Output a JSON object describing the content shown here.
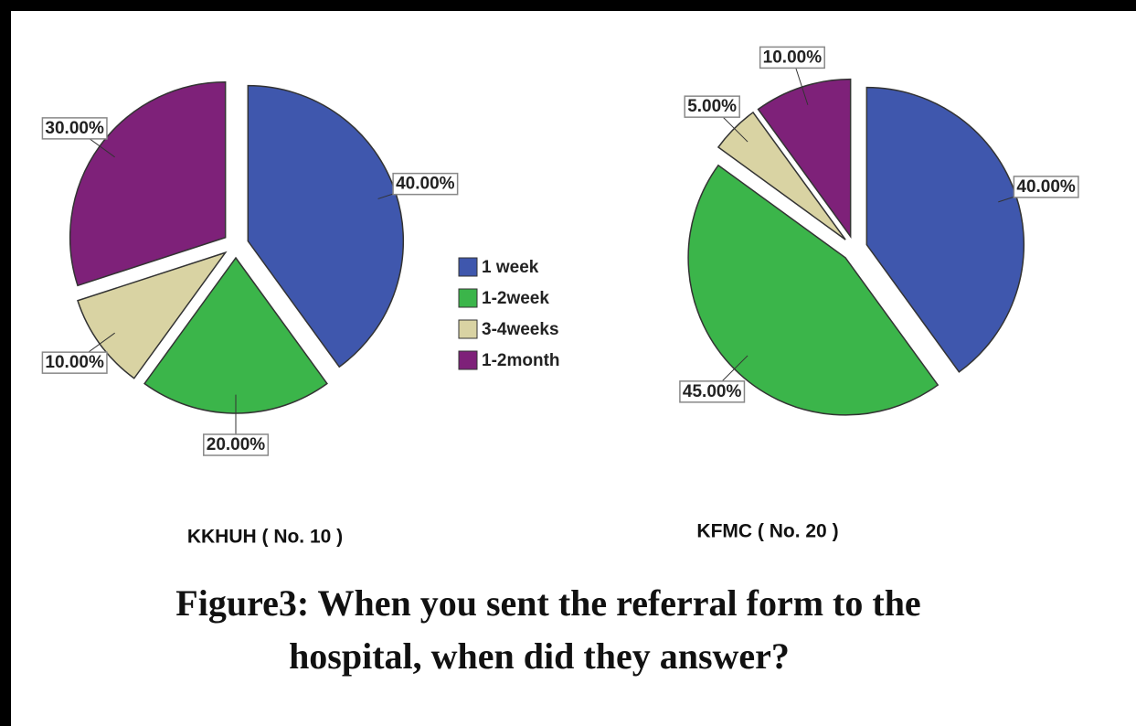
{
  "caption": [
    "Figure3: When you sent the referral form to the",
    "hospital, when did they answer?"
  ],
  "legend": {
    "categories": [
      "1 week",
      "1-2week",
      "3-4weeks",
      "1-2month"
    ],
    "colors": [
      "#3f57ad",
      "#3bb54a",
      "#d9d3a3",
      "#7e2179"
    ]
  },
  "chart_data": [
    {
      "type": "pie",
      "title": "KKHUH ( No. 10 )",
      "values": [
        40,
        20,
        10,
        30
      ],
      "value_labels": [
        "40.00%",
        "20.00%",
        "10.00%",
        "30.00%"
      ],
      "exploded": true
    },
    {
      "type": "pie",
      "title": "KFMC  ( No. 20 )",
      "values": [
        40,
        45,
        5,
        10
      ],
      "value_labels": [
        "40.00%",
        "45.00%",
        "5.00%",
        "10.00%"
      ],
      "exploded": true
    }
  ]
}
